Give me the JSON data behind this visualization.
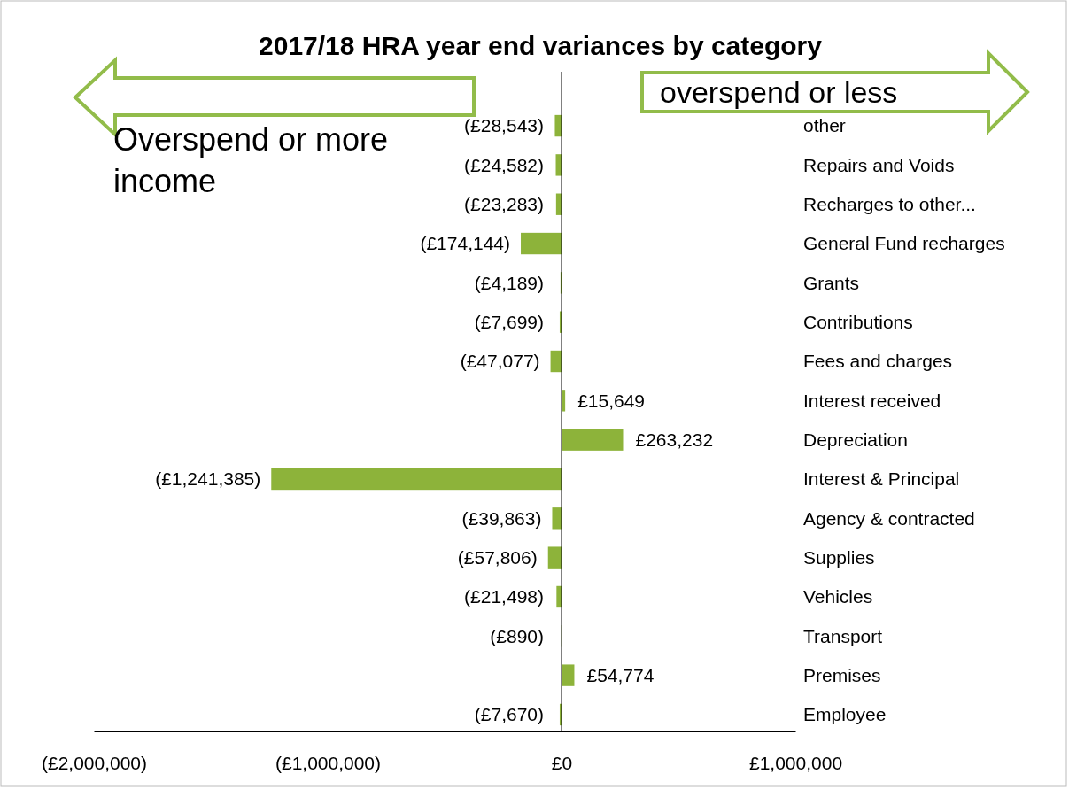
{
  "chart_data": {
    "type": "bar",
    "orientation": "horizontal",
    "title": "2017/18 HRA year end variances by category",
    "categories": [
      "other",
      "Repairs and Voids",
      "Recharges to other...",
      "General Fund recharges",
      "Grants",
      "Contributions",
      "Fees and charges",
      "Interest received",
      "Depreciation",
      "Interest & Principal",
      "Agency & contracted",
      "Supplies",
      "Vehicles",
      "Transport",
      "Premises",
      "Employee"
    ],
    "values": [
      -28543,
      -24582,
      -23283,
      -174144,
      -4189,
      -7699,
      -47077,
      15649,
      263232,
      -1241385,
      -39863,
      -57806,
      -21498,
      -890,
      54774,
      -7670
    ],
    "value_labels": [
      "(£28,543)",
      "(£24,582)",
      "(£23,283)",
      "(£174,144)",
      "(£4,189)",
      "(£7,699)",
      "(£47,077)",
      "£15,649",
      "£263,232",
      "(£1,241,385)",
      "(£39,863)",
      "(£57,806)",
      "(£21,498)",
      "(£890)",
      "£54,774",
      "(£7,670)"
    ],
    "color": "#8db33a",
    "xlim": [
      -2000000,
      1000000
    ],
    "xticks": [
      {
        "value": -2000000,
        "label": "(£2,000,000)"
      },
      {
        "value": -1000000,
        "label": "(£1,000,000)"
      },
      {
        "value": 0,
        "label": "£0"
      },
      {
        "value": 1000000,
        "label": "£1,000,000"
      }
    ],
    "annotations": [
      "Overspend or more income",
      "overspend or less"
    ],
    "legend": false
  }
}
